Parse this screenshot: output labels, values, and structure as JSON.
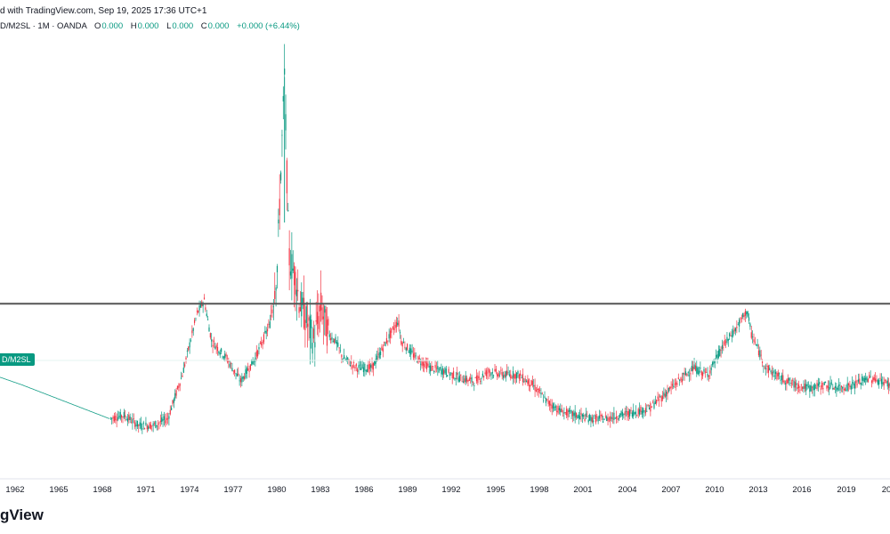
{
  "header": {
    "published_text": "d with TradingView.com, Sep 19, 2025 17:36 UTC+1"
  },
  "legend": {
    "symbol": "D/M2SL · 1M · OANDA",
    "open_label": "O",
    "open_value": "0.000",
    "high_label": "H",
    "high_value": "0.000",
    "low_label": "L",
    "low_value": "0.000",
    "close_label": "C",
    "close_value": "0.000",
    "change": "+0.000 (+6.44%)"
  },
  "symbol_tag": "D/M2SL",
  "brand": "gView",
  "colors": {
    "up": "#089981",
    "down": "#f23645",
    "line": "#555555",
    "guide": "#d1d4dc"
  },
  "chart_data": {
    "type": "line",
    "title": "",
    "x_tick_labels": [
      "1962",
      "1965",
      "1968",
      "1971",
      "1974",
      "1977",
      "1980",
      "1983",
      "1986",
      "1989",
      "1992",
      "1995",
      "1998",
      "2001",
      "2004",
      "2007",
      "2010",
      "2013",
      "2016",
      "2019",
      "20"
    ],
    "series": [
      {
        "values_note": "",
        "x": [
          1960,
          1962,
          1965,
          1968,
          1969,
          1970,
          1971,
          1972,
          1973,
          1974,
          1974.5,
          1975,
          1976,
          1977,
          1978,
          1979,
          1979.5,
          1980,
          1980.3,
          1980.8,
          1981,
          1981.5,
          1982,
          1982.5,
          1983,
          1983.5,
          1984,
          1985,
          1986,
          1987,
          1987.8,
          1988,
          1989,
          1990,
          1991,
          1992,
          1993,
          1994,
          1995,
          1996,
          1997,
          1998,
          1999,
          2000,
          2001,
          2002,
          2003,
          2004,
          2005,
          2006,
          2007,
          2008,
          2009,
          2010,
          2011,
          2011.7,
          2012,
          2013,
          2014,
          2015,
          2016,
          2017,
          2018,
          2019,
          2020,
          2021,
          2022
        ],
        "y": [
          0.5,
          0.47,
          0.42,
          0.37,
          0.38,
          0.35,
          0.35,
          0.37,
          0.5,
          0.68,
          0.72,
          0.6,
          0.55,
          0.48,
          0.55,
          0.65,
          0.82,
          1.38,
          0.85,
          0.78,
          0.72,
          0.66,
          0.6,
          0.7,
          0.62,
          0.6,
          0.55,
          0.52,
          0.52,
          0.6,
          0.66,
          0.6,
          0.55,
          0.52,
          0.51,
          0.49,
          0.48,
          0.51,
          0.5,
          0.5,
          0.47,
          0.42,
          0.39,
          0.38,
          0.37,
          0.37,
          0.38,
          0.39,
          0.4,
          0.44,
          0.48,
          0.52,
          0.5,
          0.58,
          0.64,
          0.69,
          0.62,
          0.52,
          0.49,
          0.47,
          0.46,
          0.47,
          0.46,
          0.47,
          0.49,
          0.48,
          0.46
        ]
      }
    ],
    "horizontal_level": 0.71,
    "ylim": [
      0.2,
      1.45
    ],
    "xlim": [
      1960.5,
      2021.5
    ],
    "grid": false
  }
}
